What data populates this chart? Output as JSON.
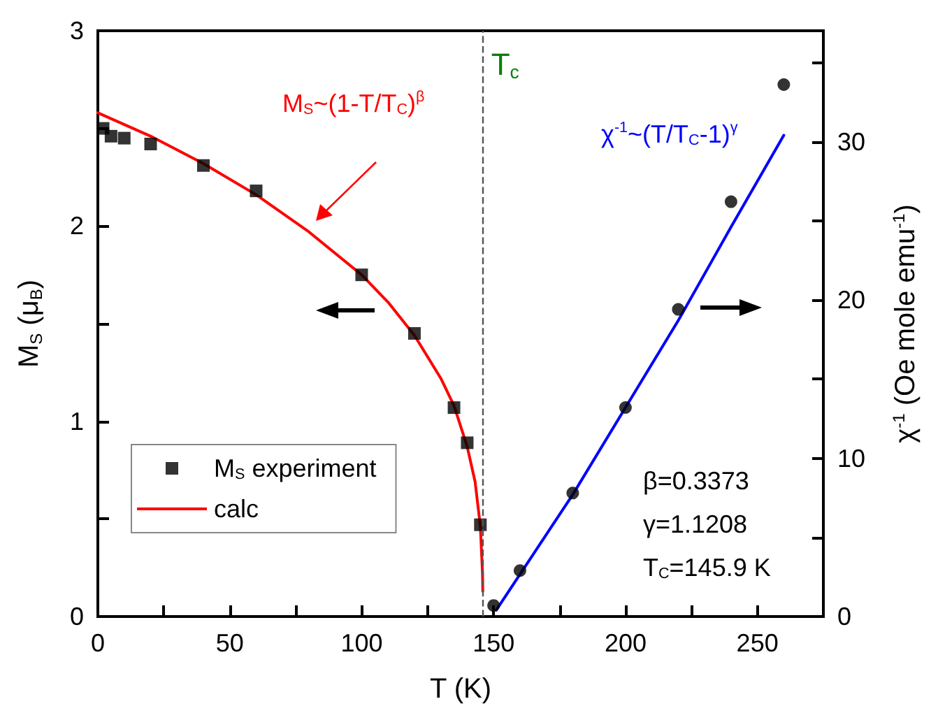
{
  "chart_data": {
    "type": "scatter",
    "xlabel": "T (K)",
    "ylabel": "M$_{S}$ (μ$_{B}$)",
    "y2label": "χ$^{-1}$ (Oe mole emu$^{-1}$)",
    "xlim": [
      0,
      275
    ],
    "xticks": [
      0,
      {
        "value": 25,
        "label": null
      },
      50,
      {
        "value": 75,
        "label": null
      },
      100,
      {
        "value": 125,
        "label": null
      },
      150,
      {
        "value": 175,
        "label": null
      },
      200,
      {
        "value": 225,
        "label": null
      },
      250
    ],
    "ylim": [
      0,
      3
    ],
    "yticks": [
      0,
      {
        "value": 0.5,
        "label": null
      },
      1,
      {
        "value": 1.5,
        "label": null
      },
      2,
      {
        "value": 2.5,
        "label": null
      },
      3
    ],
    "y2lim": [
      0,
      37
    ],
    "y2ticks": [
      0,
      {
        "value": 5,
        "label": null
      },
      10,
      {
        "value": 15,
        "label": null
      },
      20,
      {
        "value": 25,
        "label": null
      },
      30,
      {
        "value": 35,
        "label": null
      }
    ],
    "legend": "left",
    "grid": false,
    "series": [
      {
        "name": "M$_{S}$ experiment",
        "marker": "square",
        "color": "#000000",
        "x": [
          2,
          5,
          10,
          20,
          40,
          60,
          100,
          120,
          135,
          140,
          145
        ],
        "values": [
          2.5,
          2.46,
          2.45,
          2.42,
          2.31,
          2.18,
          1.75,
          1.45,
          1.07,
          0.89,
          0.47
        ]
      },
      {
        "name": "calc",
        "type": "line",
        "marker": "none",
        "color": "#ff0000",
        "x": [
          0,
          20,
          40,
          60,
          80,
          100,
          110,
          120,
          130,
          135,
          140,
          143,
          145,
          145.8,
          145.9
        ],
        "values": [
          2.58,
          2.46,
          2.32,
          2.16,
          1.97,
          1.75,
          1.61,
          1.44,
          1.22,
          1.08,
          0.87,
          0.69,
          0.46,
          0.22,
          0.13
        ]
      },
      {
        "marker": "circle",
        "axis": "y2",
        "color": "#000000",
        "x": [
          150,
          160,
          180,
          200,
          220,
          240,
          260
        ],
        "values": [
          0.7,
          2.9,
          7.8,
          13.2,
          19.4,
          26.2,
          33.6
        ]
      },
      {
        "type": "line",
        "marker": "none",
        "axis": "y2",
        "color": "#0000ff",
        "x": [
          151,
          180,
          200,
          220,
          240,
          260
        ],
        "values": [
          0.4,
          7.7,
          13.2,
          18.7,
          24.6,
          30.4
        ]
      }
    ],
    "ref_lines": [
      {
        "axis": "x",
        "value": 145.9,
        "label": "T$_{c}$",
        "color": "#555555",
        "line_style": "dashed"
      }
    ],
    "annotations": [
      "M$_{S}$~(1-T/T$_{C}$)$^{β}$",
      "χ$^{-1}$~(T/T$_{C}$-1)$^{γ}$",
      "β=0.3373",
      "γ=1.1208",
      "T$_{C}$=145.9 K"
    ]
  }
}
